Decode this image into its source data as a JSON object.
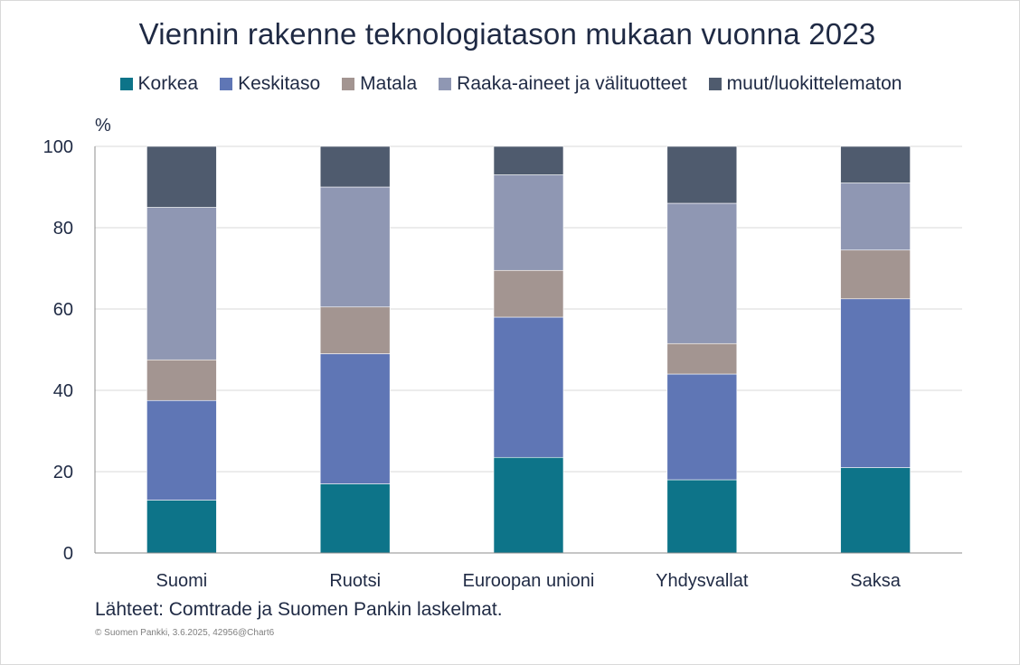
{
  "chart_data": {
    "type": "bar",
    "stacked": true,
    "title": "Viennin rakenne teknologiatason mukaan vuonna 2023",
    "ylabel": "%",
    "ylim": [
      0,
      100
    ],
    "yticks": [
      "0",
      "20",
      "40",
      "60",
      "80",
      "100"
    ],
    "grid": true,
    "legend_position": "top",
    "categories": [
      "Suomi",
      "Ruotsi",
      "Euroopan unioni",
      "Yhdysvallat",
      "Saksa"
    ],
    "series": [
      {
        "name": "Korkea",
        "color": "#0d7489",
        "values": [
          13,
          17,
          23.5,
          18,
          21
        ]
      },
      {
        "name": "Keskitaso",
        "color": "#5f76b5",
        "values": [
          24.5,
          32,
          34.5,
          26,
          41.5
        ]
      },
      {
        "name": "Matala",
        "color": "#a39591",
        "values": [
          10,
          11.5,
          11.5,
          7.5,
          12
        ]
      },
      {
        "name": "Raaka-aineet ja välituotteet",
        "color": "#8f97b3",
        "values": [
          37.5,
          29.5,
          23.5,
          34.5,
          16.5
        ]
      },
      {
        "name": "muut/luokittelematon",
        "color": "#4f5b6e",
        "values": [
          15,
          10,
          7,
          14,
          9
        ]
      }
    ]
  },
  "footer": {
    "source": "Lähteet: Comtrade ja Suomen Pankin laskelmat.",
    "copyright": "© Suomen Pankki, 3.6.2025, 42956@Chart6"
  }
}
